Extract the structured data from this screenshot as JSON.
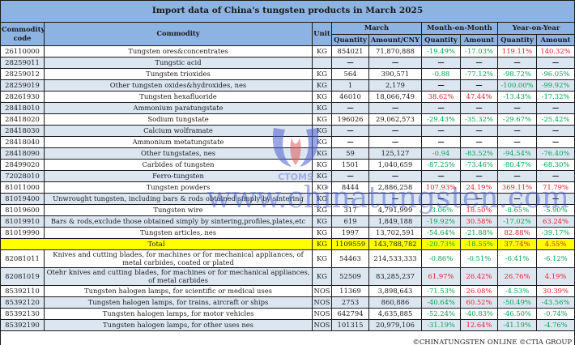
{
  "title": "Import data of China's tungsten products in March 2025",
  "headers": {
    "code": "Commodity code",
    "commodity": "Commodity",
    "unit": "Unit",
    "march": "March",
    "mom": "Month-on-Month",
    "yoy": "Year-on-Year",
    "quantity": "Quantity",
    "amount_cny": "Amount/CNY",
    "amount": "Amount"
  },
  "rows": [
    {
      "code": "26110000",
      "commodity": "Tungsten ores&concentrates",
      "unit": "KG",
      "qty": "854021",
      "amount": "71,870,888",
      "mom_qty": "-19.49%",
      "mom_amt": "-17.03%",
      "yoy_qty": "119.11%",
      "yoy_amt": "140.32%"
    },
    {
      "code": "28259011",
      "commodity": "Tungstic acid",
      "unit": "",
      "qty": "—",
      "amount": "—",
      "mom_qty": "—",
      "mom_amt": "—",
      "yoy_qty": "—",
      "yoy_amt": "—"
    },
    {
      "code": "28259012",
      "commodity": "Tungsten trioxides",
      "unit": "KG",
      "qty": "564",
      "amount": "390,571",
      "mom_qty": "-0.88",
      "mom_amt": "-77.12%",
      "yoy_qty": "-98.72%",
      "yoy_amt": "-96.05%"
    },
    {
      "code": "28259019",
      "commodity": "Other tungsten oxides&hydroxides, nes",
      "unit": "KG",
      "qty": "1",
      "amount": "2,179",
      "mom_qty": "—",
      "mom_amt": "—",
      "yoy_qty": "-100.00%",
      "yoy_amt": "-99.92%"
    },
    {
      "code": "28261930",
      "commodity": "Tungsten hexafluoride",
      "unit": "KG",
      "qty": "46010",
      "amount": "18,066,749",
      "mom_qty": "38.62%",
      "mom_amt": "47.44%",
      "yoy_qty": "-13.43%",
      "yoy_amt": "-17.32%"
    },
    {
      "code": "28418010",
      "commodity": "Ammonium paratungstate",
      "unit": "KG",
      "qty": "—",
      "amount": "—",
      "mom_qty": "—",
      "mom_amt": "—",
      "yoy_qty": "—",
      "yoy_amt": "—"
    },
    {
      "code": "28418020",
      "commodity": "Sodium tungstate",
      "unit": "KG",
      "qty": "196026",
      "amount": "29,062,573",
      "mom_qty": "-29.43%",
      "mom_amt": "-35.32%",
      "yoy_qty": "-29.67%",
      "yoy_amt": "-25.42%"
    },
    {
      "code": "28418030",
      "commodity": "Calcium wolframate",
      "unit": "KG",
      "qty": "—",
      "amount": "—",
      "mom_qty": "—",
      "mom_amt": "—",
      "yoy_qty": "—",
      "yoy_amt": "—"
    },
    {
      "code": "28418040",
      "commodity": "Ammonium metatungstate",
      "unit": "KG",
      "qty": "—",
      "amount": "—",
      "mom_qty": "—",
      "mom_amt": "—",
      "yoy_qty": "—",
      "yoy_amt": "—"
    },
    {
      "code": "28418090",
      "commodity": "Other tungstates, nes",
      "unit": "KG",
      "qty": "59",
      "amount": "125,127",
      "mom_qty": "-0.94",
      "mom_amt": "-83.52%",
      "yoy_qty": "-94.54%",
      "yoy_amt": "-76.40%"
    },
    {
      "code": "28499020",
      "commodity": "Carbides of tungsten",
      "unit": "KG",
      "qty": "1501",
      "amount": "1,040,659",
      "mom_qty": "-87.25%",
      "mom_amt": "-73.46%",
      "yoy_qty": "-80.47%",
      "yoy_amt": "-68.30%"
    },
    {
      "code": "72028010",
      "commodity": "Ferro-tungsten",
      "unit": "KG",
      "qty": "—",
      "amount": "—",
      "mom_qty": "—",
      "mom_amt": "—",
      "yoy_qty": "—",
      "yoy_amt": "—"
    },
    {
      "code": "81011000",
      "commodity": "Tungsten powders",
      "unit": "KG",
      "qty": "8444",
      "amount": "2,886,258",
      "mom_qty": "107.93%",
      "mom_amt": "24.19%",
      "yoy_qty": "369.11%",
      "yoy_amt": "71.79%"
    },
    {
      "code": "81019400",
      "commodity": "Unwrought tungsten, including bars & rods obtained simply by sintering",
      "unit": "KG",
      "qty": "—",
      "amount": "—",
      "mom_qty": "—",
      "mom_amt": "—",
      "yoy_qty": "—",
      "yoy_amt": "—"
    },
    {
      "code": "81019600",
      "commodity": "Tungsten wire",
      "unit": "KG",
      "qty": "317",
      "amount": "4,791,999",
      "mom_qty": "-3.06%",
      "mom_amt": "18.50%",
      "yoy_qty": "-8.65%",
      "yoy_amt": "-5.90%"
    },
    {
      "code": "81019910",
      "commodity": "Bars & rods,exclude those obtained simply by sintering,profiles,plates,etc",
      "unit": "KG",
      "qty": "619",
      "amount": "1,849,188",
      "mom_qty": "-19.92%",
      "mom_amt": "30.58%",
      "yoy_qty": "-17.02%",
      "yoy_amt": "63.24%"
    },
    {
      "code": "81019990",
      "commodity": "Tungsten articles, nes",
      "unit": "KG",
      "qty": "1997",
      "amount": "13,702,591",
      "mom_qty": "-54.64%",
      "mom_amt": "-21.88%",
      "yoy_qty": "82.88%",
      "yoy_amt": "-39.17%"
    }
  ],
  "total": {
    "label": "Total",
    "unit": "KG",
    "qty": "1109559",
    "amount": "143,788,782",
    "mom_qty": "-20.73%",
    "mom_amt": "-18.55%",
    "yoy_qty": "37.74%",
    "yoy_amt": "4.55%"
  },
  "rows2": [
    {
      "code": "82081011",
      "commodity": "Knives and cutting blades, for machines or for mechanical appliances, of metal carbides, coated or plated",
      "unit": "KG",
      "qty": "54463",
      "amount": "214,533,333",
      "mom_qty": "-0.86%",
      "mom_amt": "-0.51%",
      "yoy_qty": "-6.41%",
      "yoy_amt": "-6.12%"
    },
    {
      "code": "82081019",
      "commodity": "Otehr knives and cutting blades, for machines or for mechanical appliances, of metal carbides",
      "unit": "KG",
      "qty": "52509",
      "amount": "83,285,237",
      "mom_qty": "61.97%",
      "mom_amt": "26.42%",
      "yoy_qty": "26.76%",
      "yoy_amt": "4.19%"
    },
    {
      "code": "85392110",
      "commodity": "Tungsten halogen lamps, for scientific or medical uses",
      "unit": "NOS",
      "qty": "11369",
      "amount": "3,898,643",
      "mom_qty": "-71.53%",
      "mom_amt": "26.08%",
      "yoy_qty": "-4.53%",
      "yoy_amt": "30.39%"
    },
    {
      "code": "85392120",
      "commodity": "Tungsten halogen lamps, for trains, aircraft or ships",
      "unit": "NOS",
      "qty": "2753",
      "amount": "860,886",
      "mom_qty": "-40.64%",
      "mom_amt": "60.52%",
      "yoy_qty": "-50.49%",
      "yoy_amt": "-43.56%"
    },
    {
      "code": "85392130",
      "commodity": "Tungsten halogen lamps, for motor vehicles",
      "unit": "NOS",
      "qty": "642794",
      "amount": "4,635,885",
      "mom_qty": "-52.24%",
      "mom_amt": "-40.83%",
      "yoy_qty": "-46.50%",
      "yoy_amt": "-0.74%"
    },
    {
      "code": "85392190",
      "commodity": "Tungsten halogen lamps, for other uses nes",
      "unit": "NOS",
      "qty": "101315",
      "amount": "20,979,106",
      "mom_qty": "-31.19%",
      "mom_amt": "12.64%",
      "yoy_qty": "-41.19%",
      "yoy_amt": "-4.76%"
    }
  ],
  "footer": "©CHINATUNGSTEN ONLINE  ©CTIA GROUP",
  "watermark": {
    "logo_text": "CTOMS",
    "url_text": "www.chinatungsten.com"
  },
  "colors": {
    "header_bg": "#8db3e2",
    "stripe_bg": "#dce6f1",
    "total_bg": "#ffff00",
    "negative": "#00a651",
    "positive": "#e8202a"
  }
}
